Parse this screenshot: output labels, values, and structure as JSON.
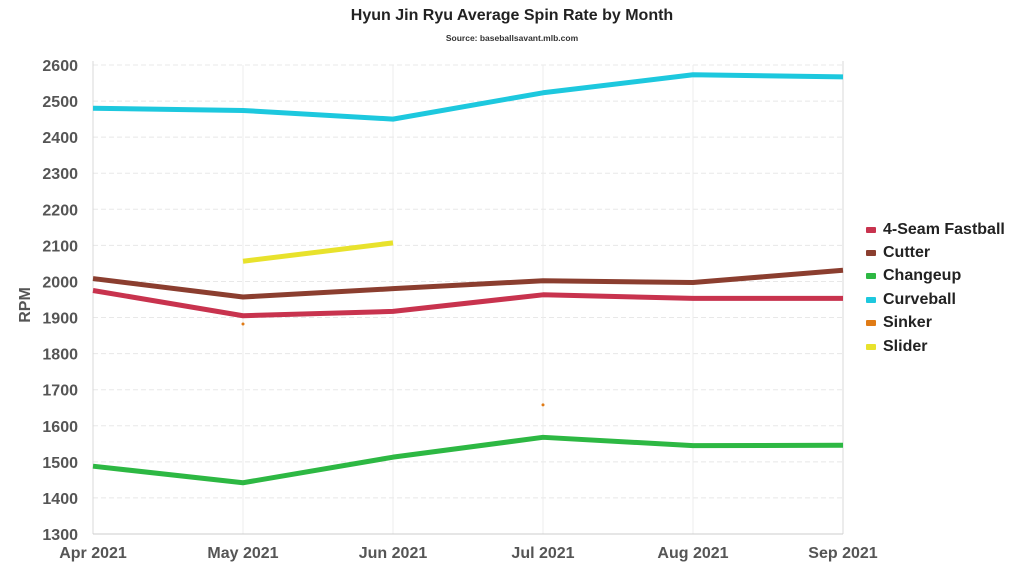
{
  "chart_data": {
    "type": "line",
    "title": "Hyun Jin Ryu Average Spin Rate by Month",
    "subtitle": "Source: baseballsavant.mlb.com",
    "xlabel": "",
    "ylabel": "RPM",
    "categories": [
      "Apr 2021",
      "May 2021",
      "Jun 2021",
      "Jul 2021",
      "Aug 2021",
      "Sep 2021"
    ],
    "ylim": [
      1300,
      2600
    ],
    "yticks": [
      "1300",
      "1400",
      "1500",
      "1600",
      "1700",
      "1800",
      "1900",
      "2000",
      "2100",
      "2200",
      "2300",
      "2400",
      "2500",
      "2600"
    ],
    "grid": true,
    "legend_position": "right",
    "series": [
      {
        "name": "4-Seam Fastball",
        "color": "#c8334e",
        "values": [
          1975,
          1905,
          1917,
          1963,
          1953,
          1953
        ]
      },
      {
        "name": "Cutter",
        "color": "#8b3e2f",
        "values": [
          2008,
          1957,
          1980,
          2002,
          1997,
          2031
        ]
      },
      {
        "name": "Changeup",
        "color": "#2db843",
        "values": [
          1488,
          1442,
          1513,
          1568,
          1545,
          1546
        ]
      },
      {
        "name": "Curveball",
        "color": "#1dc8de",
        "values": [
          2480,
          2474,
          2450,
          2523,
          2573,
          2567
        ]
      },
      {
        "name": "Sinker",
        "color": "#e07b16",
        "values": [
          null,
          1882,
          null,
          1658,
          null,
          null
        ]
      },
      {
        "name": "Slider",
        "color": "#e8e22c",
        "values": [
          null,
          2056,
          2107,
          null,
          null,
          null
        ]
      }
    ]
  }
}
